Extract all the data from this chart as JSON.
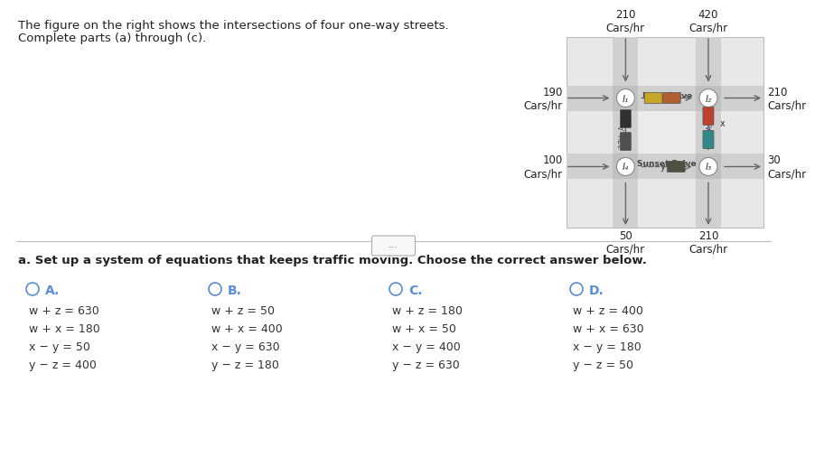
{
  "title_text1": "The figure on the right shows the intersections of four one-way streets.",
  "title_text2": "Complete parts (a) through (c).",
  "question_text": "a. Set up a system of equations that keeps traffic moving. Choose the correct answer below.",
  "choices": [
    {
      "label": "A.",
      "col": 0,
      "equations": [
        "w + z = 630",
        "w + x = 180",
        "x − y = 50",
        "y − z = 400"
      ]
    },
    {
      "label": "B.",
      "col": 1,
      "equations": [
        "w + z = 50",
        "w + x = 400",
        "x − y = 630",
        "y − z = 180"
      ]
    },
    {
      "label": "C.",
      "col": 2,
      "equations": [
        "w + z = 180",
        "w + x = 50",
        "x − y = 400",
        "y − z = 630"
      ]
    },
    {
      "label": "D.",
      "col": 3,
      "equations": [
        "w + z = 400",
        "w + x = 630",
        "x − y = 180",
        "y − z = 50"
      ]
    }
  ],
  "bg_color": "#ffffff",
  "text_color": "#222222",
  "choice_color": "#5b8dd9",
  "eq_color": "#333333",
  "road_bg": "#e0e0e0",
  "road_color": "#c8c8c8",
  "inter_color": "#d8d8d8",
  "block_color": "#ebebeb",
  "top_flows": [
    "210\nCars/hr",
    "420\nCars/hr"
  ],
  "left_flows": [
    "190\nCars/hr",
    "100\nCars/hr"
  ],
  "right_flows": [
    "210\nCars/hr",
    "30\nCars/hr"
  ],
  "bottom_flows": [
    "50\nCars/hr",
    "210\nCars/hr"
  ],
  "street_h": [
    "Palm Drive",
    "Sunset Drive"
  ],
  "street_v": [
    "27th Ave",
    "37th Ave"
  ],
  "intersections": [
    "I₁",
    "I₂",
    "I₄",
    "I₃"
  ],
  "variables": [
    "w",
    "x",
    "y",
    "z"
  ]
}
